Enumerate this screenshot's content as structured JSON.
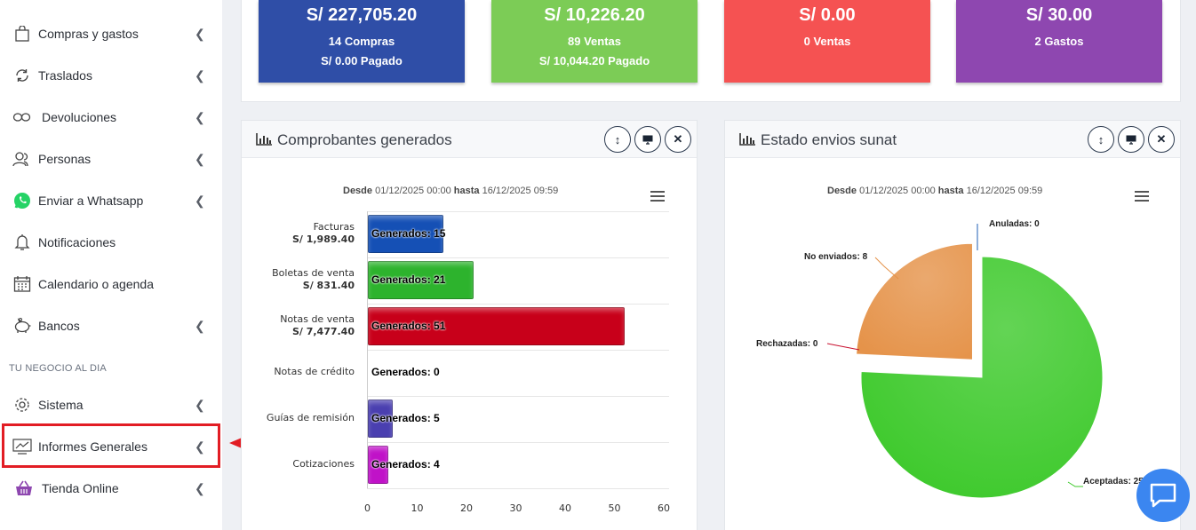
{
  "sidebar": {
    "items": [
      {
        "label": "Compras y gastos",
        "icon": "shopping-bag-icon"
      },
      {
        "label": "Traslados",
        "icon": "sync-icon"
      },
      {
        "label": "Devoluciones",
        "icon": "infinity-icon"
      },
      {
        "label": "Personas",
        "icon": "users-icon"
      },
      {
        "label": "Enviar a Whatsapp",
        "icon": "whatsapp-icon"
      },
      {
        "label": "Notificaciones",
        "icon": "bell-icon"
      },
      {
        "label": "Calendario o agenda",
        "icon": "calendar-icon"
      },
      {
        "label": "Bancos",
        "icon": "piggy-bank-icon"
      },
      {
        "label": "Sistema",
        "icon": "gear-icon"
      },
      {
        "label": "Informes Generales",
        "icon": "chart-line-icon"
      },
      {
        "label": "Tienda Online",
        "icon": "basket-icon"
      }
    ],
    "section_label": "TU NEGOCIO AL DIA"
  },
  "cards": [
    {
      "amount": "S/ 227,705.20",
      "line1": "14 Compras",
      "line2": "S/ 0.00 Pagado",
      "color": "#2f4ea7"
    },
    {
      "amount": "S/ 10,226.20",
      "line1": "89 Ventas",
      "line2": "S/ 10,044.20 Pagado",
      "color": "#7ccc56"
    },
    {
      "amount": "S/ 0.00",
      "line1": "0 Ventas",
      "line2": "",
      "color": "#f55252"
    },
    {
      "amount": "S/ 30.00",
      "line1": "2 Gastos",
      "line2": "",
      "color": "#8e47b0"
    }
  ],
  "panel_left": {
    "title": "Comprobantes generados",
    "subtitle_from_label": "Desde",
    "subtitle_from": "01/12/2025 00:00",
    "subtitle_to_label": "hasta",
    "subtitle_to": "16/12/2025 09:59"
  },
  "panel_right": {
    "title": "Estado envios sunat",
    "subtitle_from_label": "Desde",
    "subtitle_from": "01/12/2025 00:00",
    "subtitle_to_label": "hasta",
    "subtitle_to": "16/12/2025 09:59"
  },
  "chart_data": [
    {
      "type": "bar",
      "orientation": "horizontal",
      "categories": [
        "Facturas",
        "Boletas de venta",
        "Notas de venta",
        "Notas de crédito",
        "Guías de remisión",
        "Cotizaciones"
      ],
      "category_amounts": [
        "S/ 1,989.40",
        "S/ 831.40",
        "S/ 7,477.40",
        "",
        "",
        ""
      ],
      "values": [
        15,
        21,
        51,
        0,
        5,
        4
      ],
      "data_label_prefix": "Generados: ",
      "colors": [
        "#1550b5",
        "#2db32d",
        "#c8001a",
        "#999999",
        "#4a3fb0",
        "#c012c8"
      ],
      "xlim": [
        0,
        60
      ],
      "xticks": [
        0,
        10,
        20,
        30,
        40,
        50,
        60
      ]
    },
    {
      "type": "pie",
      "labels": [
        "Aceptadas",
        "No enviados",
        "Rechazadas",
        "Anuladas"
      ],
      "values": [
        25,
        8,
        0,
        0
      ],
      "label_text": [
        "Aceptadas: 25",
        "No enviados: 8",
        "Rechazadas: 0",
        "Anuladas: 0"
      ],
      "colors": [
        "#3cc92a",
        "#e5934a",
        "#c8102e",
        "#1f5fb5"
      ]
    }
  ]
}
